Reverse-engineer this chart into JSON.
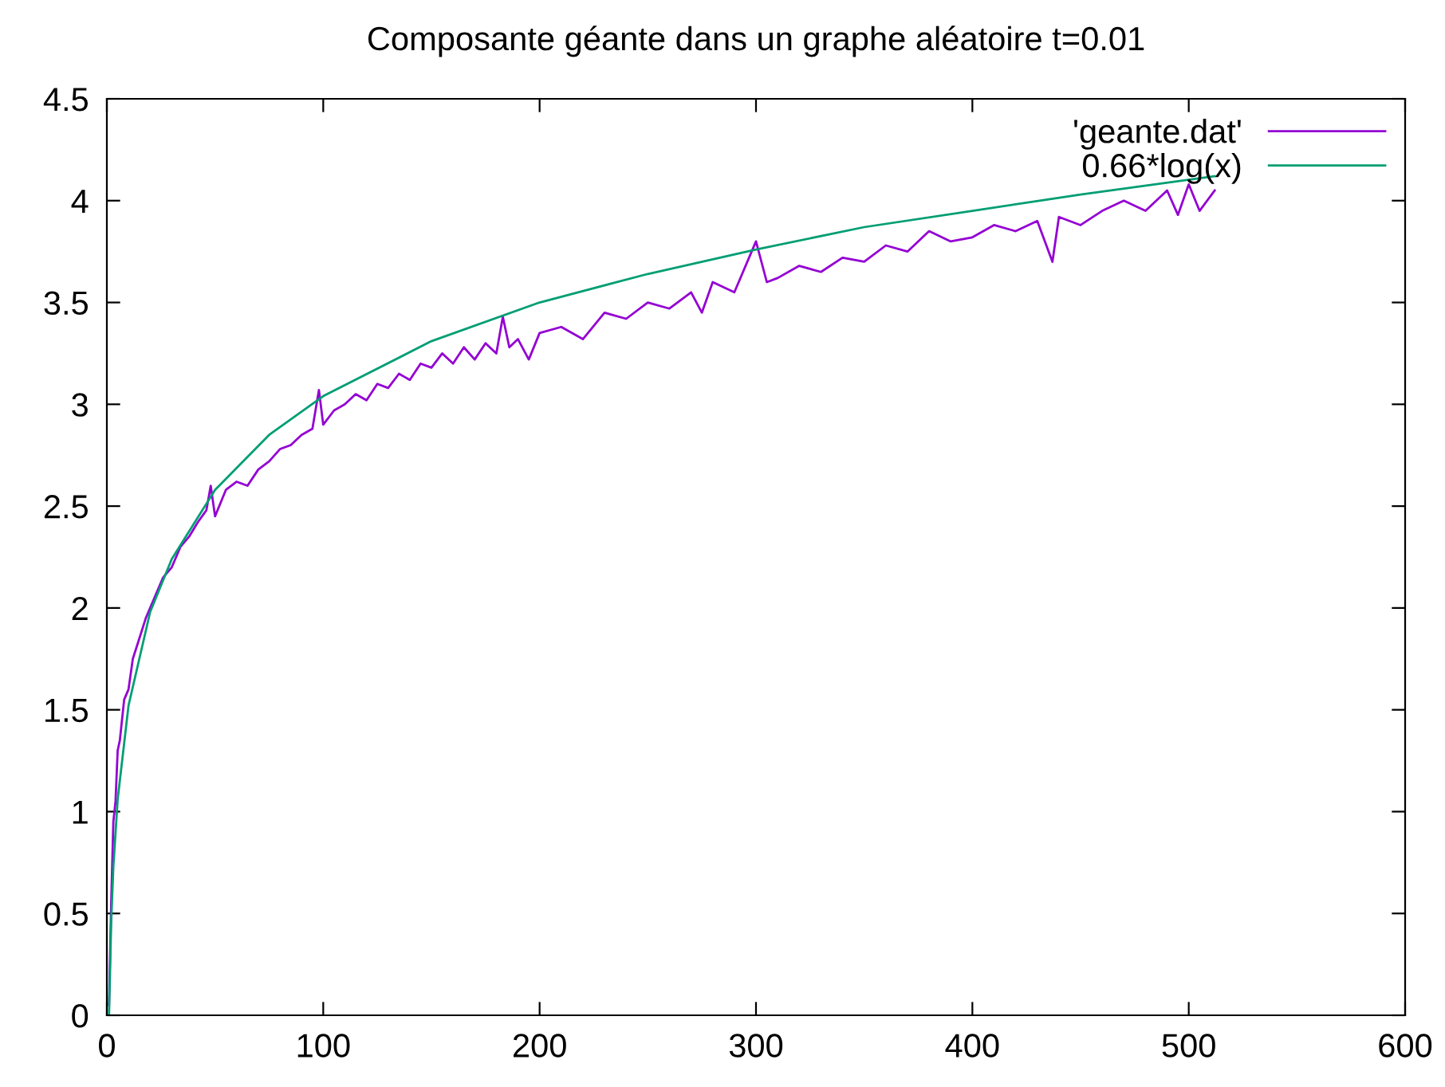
{
  "chart_data": {
    "type": "line",
    "title": "Composante géante dans un graphe aléatoire t=0.01",
    "xlim": [
      0,
      600
    ],
    "xticks": [
      0,
      100,
      200,
      300,
      400,
      500,
      600
    ],
    "ylim": [
      0,
      4.5
    ],
    "yticks": [
      0,
      0.5,
      1,
      1.5,
      2,
      2.5,
      3,
      3.5,
      4,
      4.5
    ],
    "grid": false,
    "legend": "top right",
    "marker": "none",
    "line_style": "solid",
    "series": [
      {
        "name": "'geante.dat'",
        "color": "#9400d3",
        "x": [
          1,
          2,
          3,
          4,
          5,
          6,
          8,
          10,
          12,
          15,
          18,
          22,
          26,
          30,
          34,
          38,
          42,
          46,
          48,
          50,
          55,
          60,
          65,
          70,
          75,
          80,
          85,
          90,
          95,
          98,
          100,
          105,
          110,
          115,
          120,
          125,
          130,
          135,
          140,
          145,
          150,
          155,
          160,
          165,
          170,
          175,
          180,
          183,
          186,
          190,
          195,
          200,
          210,
          220,
          230,
          240,
          250,
          260,
          270,
          275,
          280,
          290,
          300,
          305,
          310,
          320,
          330,
          340,
          350,
          360,
          370,
          380,
          390,
          400,
          410,
          420,
          430,
          437,
          440,
          450,
          460,
          470,
          480,
          490,
          495,
          500,
          505,
          512
        ],
        "values": [
          0.05,
          0.55,
          0.95,
          1.05,
          1.3,
          1.35,
          1.55,
          1.6,
          1.75,
          1.85,
          1.95,
          2.05,
          2.15,
          2.2,
          2.3,
          2.35,
          2.42,
          2.48,
          2.6,
          2.45,
          2.58,
          2.62,
          2.6,
          2.68,
          2.72,
          2.78,
          2.8,
          2.85,
          2.88,
          3.07,
          2.9,
          2.97,
          3.0,
          3.05,
          3.02,
          3.1,
          3.08,
          3.15,
          3.12,
          3.2,
          3.18,
          3.25,
          3.2,
          3.28,
          3.22,
          3.3,
          3.25,
          3.43,
          3.28,
          3.32,
          3.22,
          3.35,
          3.38,
          3.32,
          3.45,
          3.42,
          3.5,
          3.47,
          3.55,
          3.45,
          3.6,
          3.55,
          3.8,
          3.6,
          3.62,
          3.68,
          3.65,
          3.72,
          3.7,
          3.78,
          3.75,
          3.85,
          3.8,
          3.82,
          3.88,
          3.85,
          3.9,
          3.7,
          3.92,
          3.88,
          3.95,
          4.0,
          3.95,
          4.05,
          3.93,
          4.08,
          3.95,
          4.05
        ]
      },
      {
        "name": "0.66*log(x)",
        "color": "#009e73",
        "x": [
          1,
          2,
          3,
          5,
          10,
          20,
          30,
          50,
          75,
          100,
          150,
          200,
          250,
          300,
          350,
          400,
          450,
          512
        ],
        "values": [
          0,
          0.46,
          0.73,
          1.06,
          1.52,
          1.98,
          2.24,
          2.58,
          2.85,
          3.04,
          3.31,
          3.5,
          3.64,
          3.76,
          3.87,
          3.95,
          4.03,
          4.12
        ]
      }
    ]
  }
}
